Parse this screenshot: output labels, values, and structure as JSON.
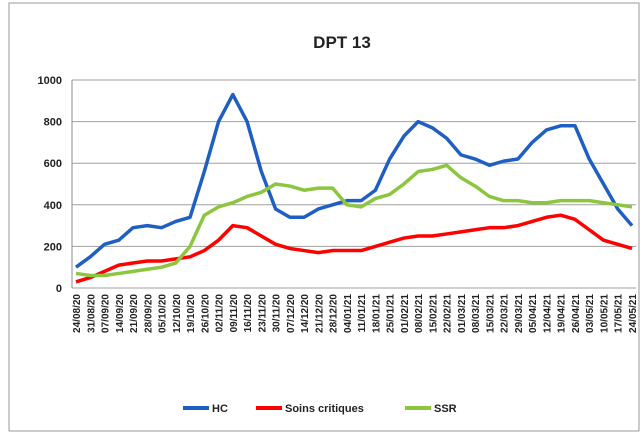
{
  "chart_data": {
    "type": "line",
    "title": "DPT 13",
    "categories": [
      "24/08/20",
      "31/08/20",
      "07/09/20",
      "14/09/20",
      "21/09/20",
      "28/09/20",
      "05/10/20",
      "12/10/20",
      "19/10/20",
      "26/10/20",
      "02/11/20",
      "09/11/20",
      "16/11/20",
      "23/11/20",
      "30/11/20",
      "07/12/20",
      "14/12/20",
      "21/12/20",
      "28/12/20",
      "04/01/21",
      "11/01/21",
      "18/01/21",
      "25/01/21",
      "01/02/21",
      "08/02/21",
      "15/02/21",
      "22/02/21",
      "01/03/21",
      "08/03/21",
      "15/03/21",
      "22/03/21",
      "29/03/21",
      "05/04/21",
      "12/04/21",
      "19/04/21",
      "26/04/21",
      "03/05/21",
      "10/05/21",
      "17/05/21",
      "24/05/21"
    ],
    "series": [
      {
        "name": "HC",
        "color": "#1f5fc4",
        "values": [
          100,
          150,
          210,
          230,
          290,
          300,
          290,
          320,
          340,
          560,
          800,
          930,
          800,
          560,
          380,
          340,
          340,
          380,
          400,
          420,
          420,
          470,
          620,
          730,
          800,
          770,
          720,
          640,
          620,
          590,
          610,
          620,
          700,
          760,
          780,
          780,
          620,
          500,
          380,
          300
        ]
      },
      {
        "name": "Soins critiques",
        "color": "#ff0000",
        "values": [
          30,
          50,
          80,
          110,
          120,
          130,
          130,
          140,
          150,
          180,
          230,
          300,
          290,
          250,
          210,
          190,
          180,
          170,
          180,
          180,
          180,
          200,
          220,
          240,
          250,
          250,
          260,
          270,
          280,
          290,
          290,
          300,
          320,
          340,
          350,
          330,
          280,
          230,
          210,
          190
        ]
      },
      {
        "name": "SSR",
        "color": "#8cc63f",
        "values": [
          70,
          60,
          60,
          70,
          80,
          90,
          100,
          120,
          200,
          350,
          390,
          410,
          440,
          460,
          500,
          490,
          470,
          480,
          480,
          400,
          390,
          430,
          450,
          500,
          560,
          570,
          590,
          530,
          490,
          440,
          420,
          420,
          410,
          410,
          420,
          420,
          420,
          410,
          400,
          390
        ]
      }
    ],
    "ylim": [
      0,
      1000
    ],
    "yticks": [
      0,
      200,
      400,
      600,
      800,
      1000
    ],
    "grid": true,
    "legend": "bottom"
  }
}
